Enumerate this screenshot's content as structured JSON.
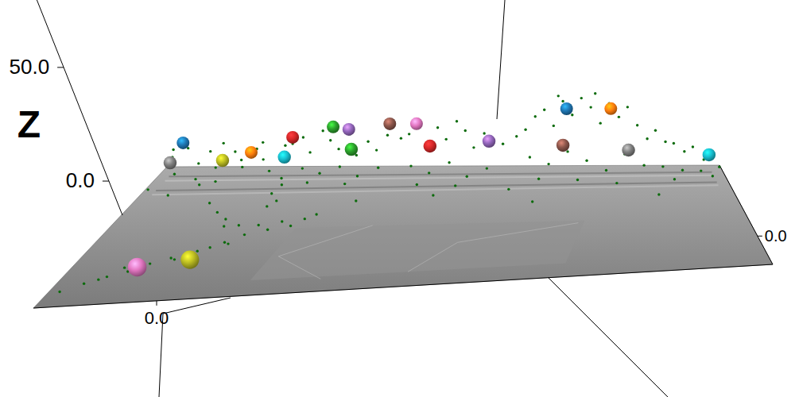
{
  "chart_data": {
    "type": "scatter3d",
    "zlabel": "Z",
    "xlim": [
      -20,
      100
    ],
    "ylim": [
      -40,
      100
    ],
    "zlim": [
      -15,
      80
    ],
    "xticks": [
      {
        "value": 0,
        "label": "0.0"
      }
    ],
    "yticks": [
      {
        "value": 0,
        "label": "0.0"
      }
    ],
    "zticks": [
      {
        "value": 0,
        "label": "0.0"
      },
      {
        "value": 50,
        "label": "50.0"
      }
    ],
    "series": [
      {
        "marker": "point",
        "color": "#0b6b0b",
        "x": [
          -18,
          -15,
          -12,
          -10,
          -8,
          -5,
          -3,
          -16,
          -11,
          -6,
          -2,
          0,
          2,
          4,
          -19,
          -14,
          -9,
          -17,
          -7,
          1,
          -4,
          -1,
          2,
          3,
          6,
          10,
          14,
          18,
          20,
          8,
          5,
          1,
          -3,
          -6,
          -9,
          -12,
          -15,
          -2,
          3,
          12,
          16,
          -10,
          -13,
          -18,
          6,
          7,
          8,
          7,
          9,
          8,
          6,
          8,
          10,
          12,
          14,
          16,
          18,
          20,
          22,
          24,
          26,
          28,
          11,
          15,
          19,
          23,
          27,
          13,
          21,
          31,
          33,
          35,
          37,
          39,
          41,
          43,
          45,
          47,
          49,
          51,
          53,
          34,
          38,
          42,
          46,
          50,
          36,
          44,
          56,
          58,
          60,
          62,
          64,
          66,
          68,
          70,
          72,
          74,
          76,
          78,
          80,
          82,
          84,
          59,
          63,
          67,
          71,
          75,
          79,
          83,
          61,
          69,
          77,
          65,
          73,
          86,
          88,
          90,
          92,
          94,
          96,
          98,
          87,
          91,
          95,
          99,
          89,
          97,
          25,
          40,
          55,
          85,
          60
        ],
        "y": [
          96,
          98,
          94,
          97,
          92,
          99,
          95,
          88,
          85,
          80,
          90,
          97,
          93,
          88,
          75,
          70,
          78,
          92,
          96,
          99,
          60,
          50,
          40,
          30,
          28,
          25,
          28,
          30,
          32,
          20,
          15,
          8,
          3,
          -2,
          -8,
          -12,
          -18,
          0,
          10,
          22,
          24,
          -5,
          -15,
          -25,
          12,
          85,
          78,
          70,
          62,
          55,
          98,
          95,
          97,
          93,
          99,
          96,
          94,
          98,
          92,
          97,
          95,
          99,
          88,
          85,
          87,
          84,
          88,
          80,
          78,
          98,
          95,
          99,
          93,
          97,
          94,
          99,
          96,
          92,
          98,
          95,
          99,
          87,
          84,
          88,
          82,
          86,
          76,
          74,
          97,
          94,
          99,
          96,
          93,
          98,
          95,
          99,
          96,
          93,
          98,
          95,
          99,
          96,
          93,
          88,
          85,
          89,
          86,
          82,
          88,
          85,
          78,
          76,
          74,
          99,
          99,
          98,
          95,
          99,
          94,
          97,
          92,
          95,
          86,
          84,
          86,
          88,
          78,
          80,
          60,
          65,
          70,
          60,
          55
        ],
        "z": [
          6,
          9,
          4,
          8,
          3,
          7,
          5,
          2,
          1,
          2,
          4,
          9,
          6,
          3,
          1,
          0.5,
          1.5,
          11,
          12,
          11,
          1,
          1,
          2,
          3,
          4,
          5,
          5,
          5,
          6,
          3,
          2,
          1.5,
          1,
          1,
          0.5,
          0.3,
          0.3,
          1.5,
          2,
          4,
          4.5,
          1,
          0.5,
          0.2,
          2.5,
          1,
          1,
          0.5,
          0.5,
          1,
          10,
          12,
          14,
          9,
          16,
          13,
          10,
          15,
          8,
          12,
          9,
          14,
          4,
          3,
          5,
          2,
          4,
          1,
          1,
          13,
          16,
          19,
          12,
          18,
          14,
          20,
          17,
          11,
          15,
          12,
          10,
          5,
          3,
          6,
          2,
          4,
          1,
          1,
          14,
          18,
          22,
          26,
          20,
          29,
          24,
          30,
          27,
          21,
          28,
          23,
          26,
          19,
          14,
          8,
          6,
          10,
          7,
          4,
          9,
          5,
          2,
          2,
          1,
          31,
          32,
          16,
          12,
          10,
          8,
          9,
          5,
          6,
          4,
          3,
          2,
          3,
          1,
          1.5,
          0.5,
          0.3,
          0.5,
          0.3,
          0.2
        ]
      },
      {
        "marker": "sphere",
        "colors": [
          "#7f7f7f",
          "#bcbd22",
          "#17becf",
          "#2ca02c",
          "#d62728",
          "#9467bd",
          "#8c564b",
          "#7f7f7f",
          "#17becf",
          "#1f77b4",
          "#ff7f0e",
          "#d62728",
          "#2ca02c",
          "#9467bd",
          "#8c564b",
          "#e377c2",
          "#1f77b4",
          "#ff7f0e",
          "#e377c2",
          "#bcbd22"
        ],
        "x": [
          -17.9,
          -6.7,
          6.5,
          20.8,
          37.6,
          50.2,
          66.0,
          80.0,
          97.2,
          -16.5,
          -1.7,
          7.3,
          16.1,
          19.5,
          28.4,
          34.2,
          66.8,
          76.4,
          -7.8,
          0.7
        ],
        "y": [
          93,
          93,
          93,
          93,
          93,
          93,
          93,
          93,
          93,
          100,
          100,
          100,
          100,
          100,
          100,
          100,
          100,
          100,
          -5,
          0
        ],
        "z": [
          4.8,
          5.7,
          7.0,
          10.2,
          11.4,
          13.4,
          11.4,
          9.1,
          6.8,
          10.5,
          6.2,
          12.8,
          17.3,
          16.2,
          18.6,
          18.6,
          25.0,
          25.0,
          1,
          1.1
        ]
      }
    ]
  }
}
